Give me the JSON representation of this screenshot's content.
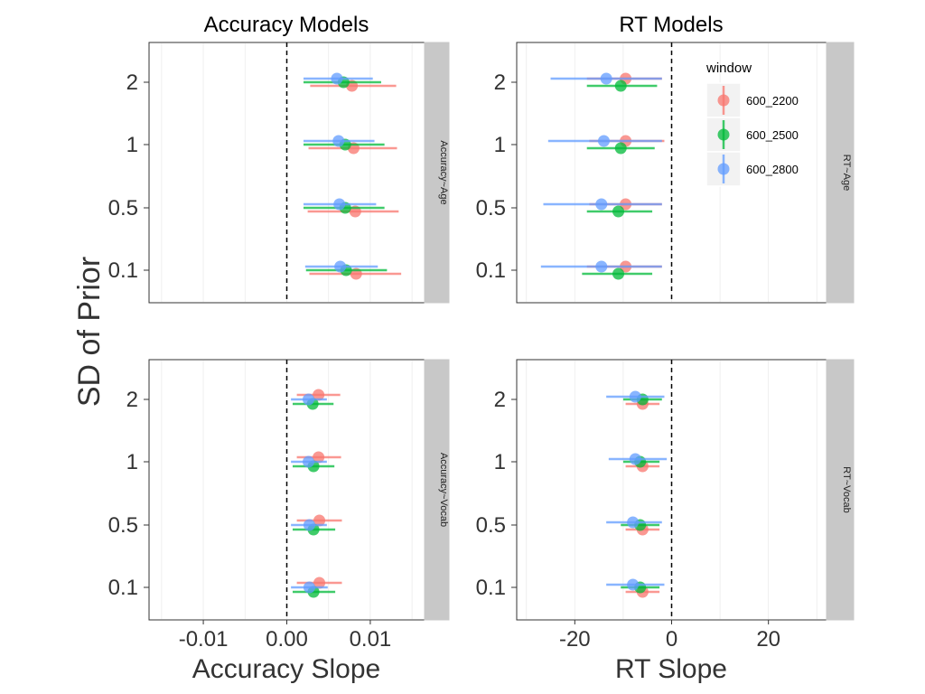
{
  "chart_data": {
    "type": "scatter",
    "subtype": "point-range",
    "ylabel": "SD of Prior",
    "y_categories": [
      "0.1",
      "0.5",
      "1",
      "2"
    ],
    "legend": {
      "title": "window",
      "placement": "right of top-right panel",
      "items": [
        {
          "name": "600_2200",
          "color": "#F8766D"
        },
        {
          "name": "600_2500",
          "color": "#00BA38"
        },
        {
          "name": "600_2800",
          "color": "#619CFF"
        }
      ]
    },
    "columns": [
      {
        "title": "Accuracy Models",
        "xlabel": "Accuracy Slope",
        "xlim": [
          -0.0165,
          0.0165
        ],
        "xticks": [
          {
            "value": -0.01,
            "label": "-0.01"
          },
          {
            "value": 0.0,
            "label": "0.00"
          },
          {
            "value": 0.01,
            "label": "0.01"
          }
        ],
        "reference_line_x": 0
      },
      {
        "title": "RT Models",
        "xlabel": "RT Slope",
        "xlim": [
          -32,
          32
        ],
        "xticks": [
          {
            "value": -20,
            "label": "-20"
          },
          {
            "value": 0,
            "label": "0"
          },
          {
            "value": 20,
            "label": "20"
          }
        ],
        "reference_line_x": 0
      }
    ],
    "rows": [
      {
        "strip": "Accuracy~Age",
        "strip_right": "RT~Age"
      },
      {
        "strip": "Accuracy~Vocab",
        "strip_right": "RT~Vocab"
      }
    ],
    "panels": [
      {
        "strip": "Accuracy~Age",
        "series": [
          {
            "name": "600_2200",
            "points": [
              {
                "sd": "2",
                "est": 0.0078,
                "lo": 0.0028,
                "hi": 0.0131
              },
              {
                "sd": "1",
                "est": 0.008,
                "lo": 0.0026,
                "hi": 0.0132
              },
              {
                "sd": "0.5",
                "est": 0.0082,
                "lo": 0.0025,
                "hi": 0.0134
              },
              {
                "sd": "0.1",
                "est": 0.0083,
                "lo": 0.0027,
                "hi": 0.0137
              }
            ]
          },
          {
            "name": "600_2500",
            "points": [
              {
                "sd": "2",
                "est": 0.0068,
                "lo": 0.002,
                "hi": 0.0113
              },
              {
                "sd": "1",
                "est": 0.007,
                "lo": 0.002,
                "hi": 0.0117
              },
              {
                "sd": "0.5",
                "est": 0.007,
                "lo": 0.002,
                "hi": 0.0117
              },
              {
                "sd": "0.1",
                "est": 0.0071,
                "lo": 0.0023,
                "hi": 0.012
              }
            ]
          },
          {
            "name": "600_2800",
            "points": [
              {
                "sd": "2",
                "est": 0.006,
                "lo": 0.002,
                "hi": 0.0103
              },
              {
                "sd": "1",
                "est": 0.0062,
                "lo": 0.002,
                "hi": 0.0105
              },
              {
                "sd": "0.5",
                "est": 0.0063,
                "lo": 0.002,
                "hi": 0.0107
              },
              {
                "sd": "0.1",
                "est": 0.0064,
                "lo": 0.0022,
                "hi": 0.0109
              }
            ]
          }
        ]
      },
      {
        "strip": "RT~Age",
        "series": [
          {
            "name": "600_2200",
            "points": [
              {
                "sd": "2",
                "est": -9.5,
                "lo": -17.5,
                "hi": -2.0
              },
              {
                "sd": "1",
                "est": -9.5,
                "lo": -17.0,
                "hi": -1.5
              },
              {
                "sd": "0.5",
                "est": -9.5,
                "lo": -17.0,
                "hi": -2.0
              },
              {
                "sd": "0.1",
                "est": -9.5,
                "lo": -17.5,
                "hi": -2.0
              }
            ]
          },
          {
            "name": "600_2500",
            "points": [
              {
                "sd": "2",
                "est": -10.5,
                "lo": -17.5,
                "hi": -3.0
              },
              {
                "sd": "1",
                "est": -10.5,
                "lo": -17.5,
                "hi": -3.5
              },
              {
                "sd": "0.5",
                "est": -11.0,
                "lo": -17.5,
                "hi": -4.0
              },
              {
                "sd": "0.1",
                "est": -11.0,
                "lo": -18.5,
                "hi": -4.0
              }
            ]
          },
          {
            "name": "600_2800",
            "points": [
              {
                "sd": "2",
                "est": -13.5,
                "lo": -25.0,
                "hi": -2.0
              },
              {
                "sd": "1",
                "est": -14.0,
                "lo": -25.5,
                "hi": -2.0
              },
              {
                "sd": "0.5",
                "est": -14.5,
                "lo": -26.5,
                "hi": -2.0
              },
              {
                "sd": "0.1",
                "est": -14.5,
                "lo": -27.0,
                "hi": -2.0
              }
            ]
          }
        ]
      },
      {
        "strip": "Accuracy~Vocab",
        "series": [
          {
            "name": "600_2200",
            "points": [
              {
                "sd": "2",
                "est": 0.0038,
                "lo": 0.0012,
                "hi": 0.0064
              },
              {
                "sd": "1",
                "est": 0.0038,
                "lo": 0.0012,
                "hi": 0.0065
              },
              {
                "sd": "0.5",
                "est": 0.0039,
                "lo": 0.0012,
                "hi": 0.0066
              },
              {
                "sd": "0.1",
                "est": 0.0039,
                "lo": 0.0012,
                "hi": 0.0066
              }
            ]
          },
          {
            "name": "600_2500",
            "points": [
              {
                "sd": "2",
                "est": 0.0031,
                "lo": 0.0007,
                "hi": 0.0056
              },
              {
                "sd": "1",
                "est": 0.0032,
                "lo": 0.0007,
                "hi": 0.0057
              },
              {
                "sd": "0.5",
                "est": 0.0032,
                "lo": 0.0007,
                "hi": 0.0058
              },
              {
                "sd": "0.1",
                "est": 0.0032,
                "lo": 0.0007,
                "hi": 0.0058
              }
            ]
          },
          {
            "name": "600_2800",
            "points": [
              {
                "sd": "2",
                "est": 0.0026,
                "lo": 0.0005,
                "hi": 0.0048
              },
              {
                "sd": "1",
                "est": 0.0026,
                "lo": 0.0005,
                "hi": 0.0048
              },
              {
                "sd": "0.5",
                "est": 0.0027,
                "lo": 0.0005,
                "hi": 0.0048
              },
              {
                "sd": "0.1",
                "est": 0.0027,
                "lo": 0.0005,
                "hi": 0.0049
              }
            ]
          }
        ]
      },
      {
        "strip": "RT~Vocab",
        "series": [
          {
            "name": "600_2200",
            "points": [
              {
                "sd": "2",
                "est": -6.0,
                "lo": -9.5,
                "hi": -2.5
              },
              {
                "sd": "1",
                "est": -6.0,
                "lo": -9.5,
                "hi": -2.5
              },
              {
                "sd": "0.5",
                "est": -6.0,
                "lo": -9.5,
                "hi": -2.5
              },
              {
                "sd": "0.1",
                "est": -6.0,
                "lo": -9.5,
                "hi": -2.5
              }
            ]
          },
          {
            "name": "600_2500",
            "points": [
              {
                "sd": "2",
                "est": -6.0,
                "lo": -10.0,
                "hi": -2.0
              },
              {
                "sd": "1",
                "est": -6.5,
                "lo": -10.0,
                "hi": -2.5
              },
              {
                "sd": "0.5",
                "est": -6.5,
                "lo": -10.5,
                "hi": -2.5
              },
              {
                "sd": "0.1",
                "est": -6.5,
                "lo": -10.5,
                "hi": -2.5
              }
            ]
          },
          {
            "name": "600_2800",
            "points": [
              {
                "sd": "2",
                "est": -7.5,
                "lo": -13.5,
                "hi": -1.5
              },
              {
                "sd": "1",
                "est": -7.5,
                "lo": -13.0,
                "hi": -1.0
              },
              {
                "sd": "0.5",
                "est": -8.0,
                "lo": -13.5,
                "hi": -2.0
              },
              {
                "sd": "0.1",
                "est": -8.0,
                "lo": -13.5,
                "hi": -1.5
              }
            ]
          }
        ]
      }
    ]
  }
}
